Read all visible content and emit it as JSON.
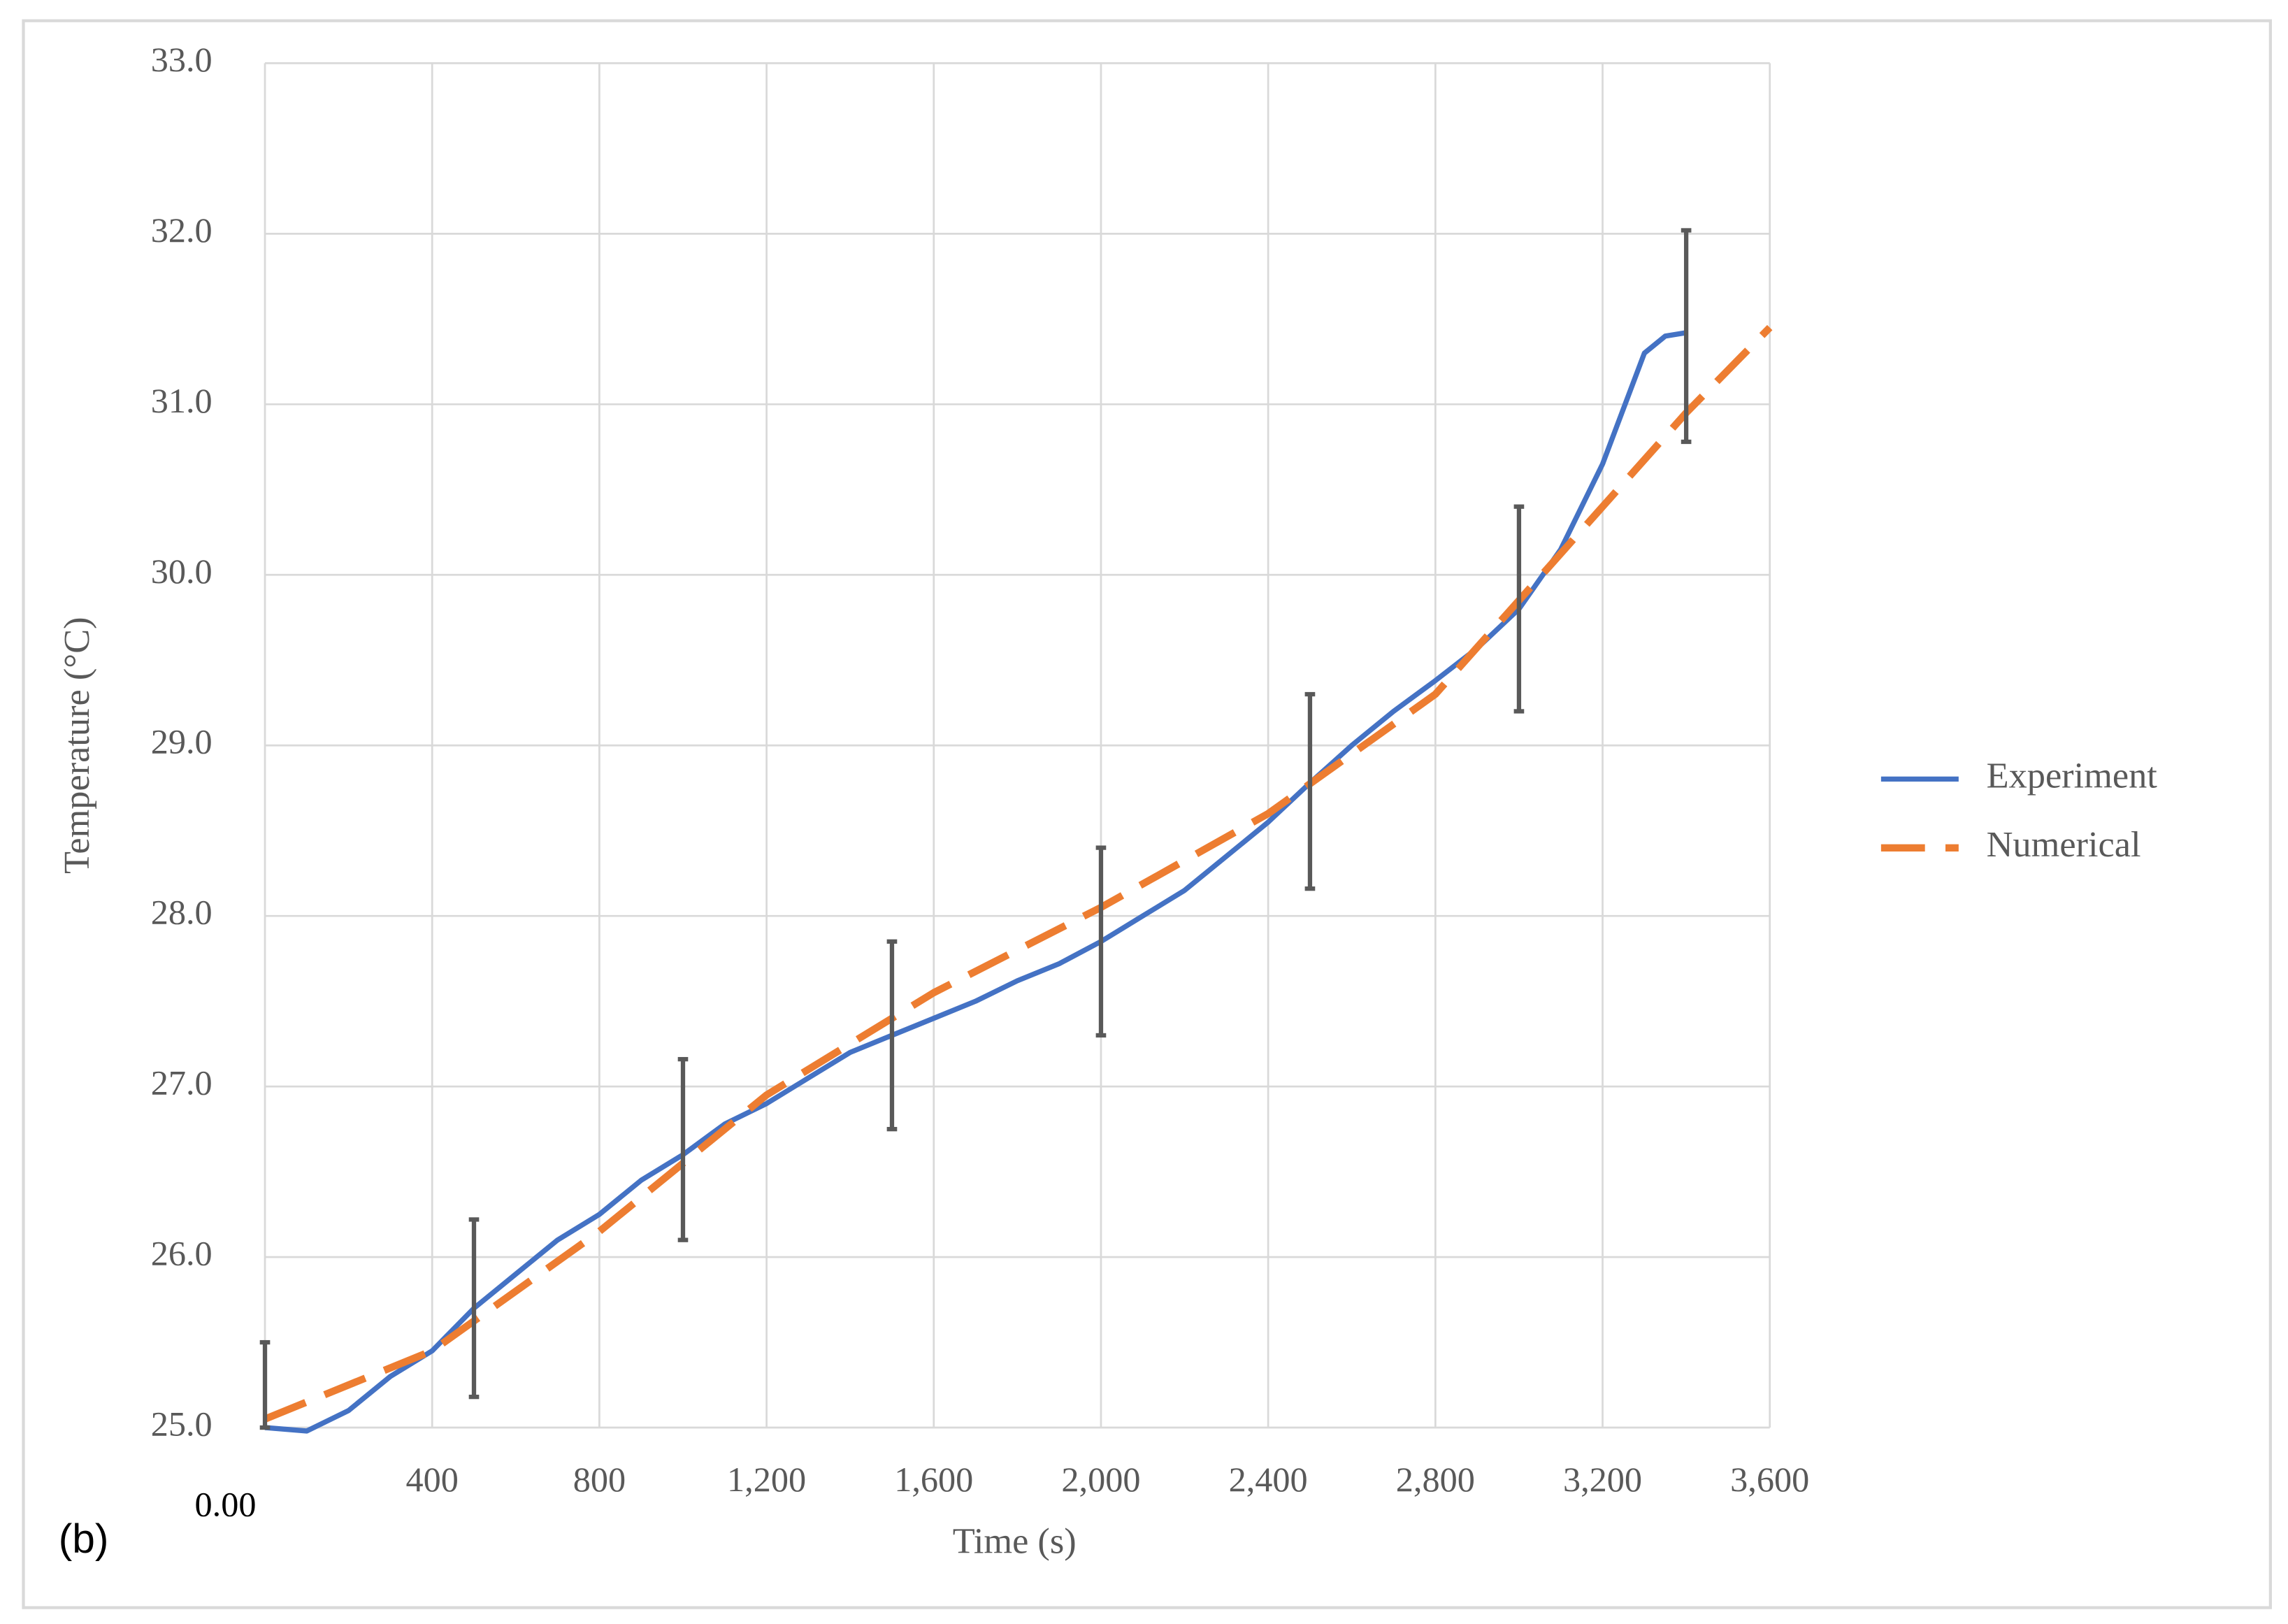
{
  "chart_data": {
    "type": "line",
    "annotation": "(b)",
    "x_label": "Time (s)",
    "y_label": "Temperature (°C)",
    "xlim": [
      0,
      3600
    ],
    "ylim": [
      25,
      33
    ],
    "xticks": [
      {
        "value": 0,
        "label": "0.00"
      },
      400,
      800,
      {
        "value": 1200,
        "label": "1,200"
      },
      {
        "value": 1600,
        "label": "1,600"
      },
      {
        "value": 2000,
        "label": "2,000"
      },
      {
        "value": 2400,
        "label": "2,400"
      },
      {
        "value": 2800,
        "label": "2,800"
      },
      {
        "value": 3200,
        "label": "3,200"
      },
      {
        "value": 3600,
        "label": "3,600"
      }
    ],
    "yticks": [
      {
        "value": 25,
        "label": "25.0"
      },
      {
        "value": 26,
        "label": "26.0"
      },
      {
        "value": 27,
        "label": "27.0"
      },
      {
        "value": 28,
        "label": "28.0"
      },
      {
        "value": 29,
        "label": "29.0"
      },
      {
        "value": 30,
        "label": "30.0"
      },
      {
        "value": 31,
        "label": "31.0"
      },
      {
        "value": 32,
        "label": "32.0"
      },
      {
        "value": 33,
        "label": "33.0"
      }
    ],
    "grid": true,
    "legend": "right",
    "series": [
      {
        "name": "Experiment",
        "color": "#4472c4",
        "dash": false,
        "x": [
          0,
          100,
          200,
          300,
          400,
          500,
          600,
          700,
          800,
          900,
          1000,
          1100,
          1200,
          1300,
          1400,
          1500,
          1600,
          1700,
          1800,
          1900,
          2000,
          2100,
          2200,
          2300,
          2400,
          2500,
          2600,
          2700,
          2800,
          2900,
          3000,
          3100,
          3200,
          3300,
          3350,
          3400
        ],
        "values": [
          25.0,
          24.98,
          25.1,
          25.3,
          25.45,
          25.7,
          25.9,
          26.1,
          26.25,
          26.45,
          26.6,
          26.78,
          26.9,
          27.05,
          27.2,
          27.3,
          27.4,
          27.5,
          27.62,
          27.72,
          27.85,
          28.0,
          28.15,
          28.35,
          28.55,
          28.78,
          29.0,
          29.2,
          29.38,
          29.57,
          29.8,
          30.15,
          30.65,
          31.3,
          31.4,
          31.42
        ]
      },
      {
        "name": "Numerical",
        "color": "#ed7d31",
        "dash": true,
        "x": [
          0,
          400,
          800,
          1200,
          1600,
          2000,
          2400,
          2800,
          3000,
          3200,
          3400,
          3600
        ],
        "values": [
          25.05,
          25.45,
          26.15,
          26.95,
          27.55,
          28.05,
          28.6,
          29.3,
          29.85,
          30.4,
          30.95,
          31.45
        ]
      }
    ],
    "error_bars": {
      "color": "#595959",
      "x": [
        0,
        500,
        1000,
        1500,
        2000,
        2500,
        3000,
        3400
      ],
      "values": [
        25.0,
        25.7,
        26.63,
        27.3,
        27.85,
        28.73,
        29.8,
        31.4
      ],
      "errors": [
        0.5,
        0.52,
        0.53,
        0.55,
        0.55,
        0.57,
        0.6,
        0.62
      ]
    }
  }
}
